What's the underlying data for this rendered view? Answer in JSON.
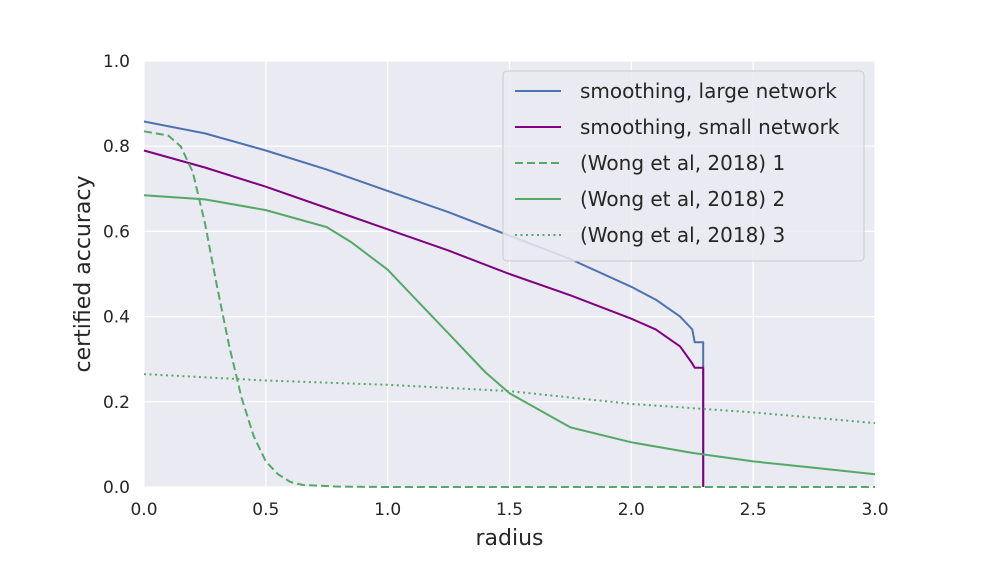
{
  "chart_data": {
    "type": "line",
    "title": "",
    "xlabel": "radius",
    "ylabel": "certified accuracy",
    "xlim": [
      0.0,
      3.0
    ],
    "ylim": [
      0.0,
      1.0
    ],
    "xticks": [
      "0.0",
      "0.5",
      "1.0",
      "1.5",
      "2.0",
      "2.5",
      "3.0"
    ],
    "yticks": [
      "0.0",
      "0.2",
      "0.4",
      "0.6",
      "0.8",
      "1.0"
    ],
    "grid": true,
    "legend_position": "top-right",
    "background_color": "#eaeaf2",
    "series": [
      {
        "name": "smoothing, large network",
        "color": "#4c72b0",
        "style": "solid",
        "points": [
          [
            0.0,
            0.858
          ],
          [
            0.25,
            0.83
          ],
          [
            0.5,
            0.79
          ],
          [
            0.75,
            0.745
          ],
          [
            1.0,
            0.695
          ],
          [
            1.25,
            0.645
          ],
          [
            1.5,
            0.59
          ],
          [
            1.75,
            0.535
          ],
          [
            2.0,
            0.47
          ],
          [
            2.1,
            0.44
          ],
          [
            2.2,
            0.4
          ],
          [
            2.25,
            0.37
          ],
          [
            2.26,
            0.34
          ],
          [
            2.295,
            0.34
          ],
          [
            2.295,
            0.0
          ]
        ]
      },
      {
        "name": "smoothing, small network",
        "color": "#800080",
        "style": "solid",
        "points": [
          [
            0.0,
            0.79
          ],
          [
            0.25,
            0.75
          ],
          [
            0.5,
            0.705
          ],
          [
            0.75,
            0.655
          ],
          [
            1.0,
            0.605
          ],
          [
            1.25,
            0.555
          ],
          [
            1.5,
            0.5
          ],
          [
            1.75,
            0.45
          ],
          [
            2.0,
            0.395
          ],
          [
            2.1,
            0.37
          ],
          [
            2.2,
            0.33
          ],
          [
            2.25,
            0.29
          ],
          [
            2.26,
            0.28
          ],
          [
            2.295,
            0.28
          ],
          [
            2.295,
            0.0
          ]
        ]
      },
      {
        "name": "(Wong et al, 2018) 1",
        "color": "#55a868",
        "style": "dashed",
        "points": [
          [
            0.0,
            0.835
          ],
          [
            0.1,
            0.825
          ],
          [
            0.15,
            0.8
          ],
          [
            0.2,
            0.74
          ],
          [
            0.25,
            0.62
          ],
          [
            0.3,
            0.47
          ],
          [
            0.35,
            0.33
          ],
          [
            0.4,
            0.21
          ],
          [
            0.45,
            0.12
          ],
          [
            0.5,
            0.06
          ],
          [
            0.55,
            0.03
          ],
          [
            0.6,
            0.012
          ],
          [
            0.65,
            0.005
          ],
          [
            0.8,
            0.001
          ],
          [
            1.0,
            0.0
          ],
          [
            3.0,
            0.0
          ]
        ]
      },
      {
        "name": "(Wong et al, 2018) 2",
        "color": "#55a868",
        "style": "solid",
        "points": [
          [
            0.0,
            0.685
          ],
          [
            0.25,
            0.675
          ],
          [
            0.5,
            0.65
          ],
          [
            0.75,
            0.61
          ],
          [
            0.85,
            0.575
          ],
          [
            1.0,
            0.51
          ],
          [
            1.1,
            0.45
          ],
          [
            1.25,
            0.36
          ],
          [
            1.4,
            0.27
          ],
          [
            1.5,
            0.22
          ],
          [
            1.75,
            0.14
          ],
          [
            2.0,
            0.105
          ],
          [
            2.25,
            0.08
          ],
          [
            2.5,
            0.06
          ],
          [
            2.75,
            0.045
          ],
          [
            3.0,
            0.03
          ]
        ]
      },
      {
        "name": "(Wong et al, 2018) 3",
        "color": "#55a868",
        "style": "dotted",
        "points": [
          [
            0.0,
            0.265
          ],
          [
            0.5,
            0.25
          ],
          [
            1.0,
            0.24
          ],
          [
            1.5,
            0.225
          ],
          [
            2.0,
            0.195
          ],
          [
            2.5,
            0.175
          ],
          [
            3.0,
            0.15
          ]
        ]
      }
    ]
  }
}
